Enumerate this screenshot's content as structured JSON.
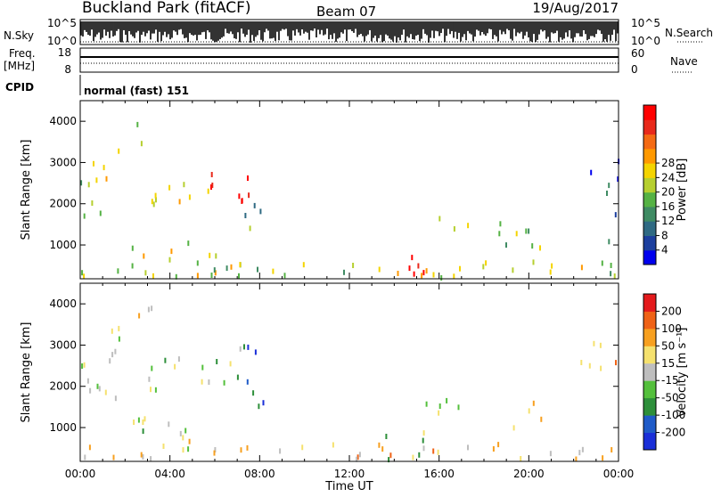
{
  "header": {
    "title": "Buckland Park (fitACF)",
    "beam": "Beam 07",
    "date": "19/Aug/2017"
  },
  "top_panels": {
    "nsky_label": "N.Sky",
    "nsky_ticks": [
      "10^5",
      "10^0"
    ],
    "nsearch_label": "N.Search",
    "nsearch_ticks": [
      "10^5",
      "10^0"
    ],
    "freq_label": "Freq.",
    "freq_unit": "[MHz]",
    "freq_ticks": [
      "18",
      "8"
    ],
    "nave_label": "Nave",
    "nave_ticks": [
      "60",
      "0"
    ],
    "cpid_label": "CPID",
    "cpid_text": "normal (fast) 151"
  },
  "chart_data": [
    {
      "type": "heatmap",
      "panel": "power",
      "ylabel": "Slant Range [km]",
      "yticks": [
        "4000",
        "3000",
        "2000",
        "1000"
      ],
      "ylim": [
        180,
        4500
      ],
      "xlim_hours": [
        0,
        24
      ],
      "colorbar_label": "Power [dB]",
      "colorbar_ticks": [
        "28",
        "24",
        "20",
        "16",
        "12",
        "8",
        "4"
      ],
      "colorbar_colors": [
        "#0000ee",
        "#1c3f9e",
        "#2f6a83",
        "#3f8b63",
        "#55b244",
        "#b6cf2f",
        "#f4d400",
        "#ff9900",
        "#f46a14",
        "#e8291b",
        "#ff0000"
      ],
      "regions": [
        {
          "t0": 0.0,
          "t1": 1.6,
          "r0": 1700,
          "r1": 3000,
          "level": 0.45
        },
        {
          "t0": 1.0,
          "t1": 1.8,
          "r0": 2600,
          "r1": 3500,
          "level": 0.55
        },
        {
          "t0": 2.4,
          "t1": 3.2,
          "r0": 3100,
          "r1": 4300,
          "level": 0.3
        },
        {
          "t0": 3.0,
          "t1": 6.0,
          "r0": 1900,
          "r1": 2500,
          "level": 0.6
        },
        {
          "t0": 5.8,
          "t1": 7.6,
          "r0": 2000,
          "r1": 2900,
          "level": 0.9
        },
        {
          "t0": 7.2,
          "t1": 8.6,
          "r0": 1400,
          "r1": 2100,
          "level": 0.3
        },
        {
          "t0": 2.0,
          "t1": 5.2,
          "r0": 550,
          "r1": 1300,
          "level": 0.55
        },
        {
          "t0": 4.6,
          "t1": 6.2,
          "r0": 400,
          "r1": 900,
          "level": 0.4
        },
        {
          "t0": 0.0,
          "t1": 24.0,
          "r0": 200,
          "r1": 600,
          "level": 0.5
        },
        {
          "t0": 13.6,
          "t1": 15.4,
          "r0": 200,
          "r1": 900,
          "level": 0.85
        },
        {
          "t0": 15.4,
          "t1": 17.4,
          "r0": 1250,
          "r1": 1800,
          "level": 0.5
        },
        {
          "t0": 18.6,
          "t1": 20.6,
          "r0": 900,
          "r1": 1700,
          "level": 0.45
        },
        {
          "t0": 22.3,
          "t1": 24.0,
          "r0": 2200,
          "r1": 3100,
          "level": 0.15
        },
        {
          "t0": 23.4,
          "t1": 24.0,
          "r0": 1000,
          "r1": 1800,
          "level": 0.2
        }
      ]
    },
    {
      "type": "heatmap",
      "panel": "velocity",
      "ylabel": "Slant Range [km]",
      "yticks": [
        "4000",
        "3000",
        "2000",
        "1000"
      ],
      "ylim": [
        180,
        4500
      ],
      "xlim_hours": [
        0,
        24
      ],
      "xticks": [
        "00:00",
        "04:00",
        "08:00",
        "12:00",
        "16:00",
        "20:00",
        "00:00"
      ],
      "xlabel": "Time UT",
      "colorbar_label": "Velocity [m s⁻¹]",
      "colorbar_ticks": [
        "200",
        "100",
        "50",
        "15",
        "-15",
        "-50",
        "-100",
        "-200"
      ],
      "colorbar_colors": [
        "#1a2fd8",
        "#1f5bc8",
        "#2d8f3a",
        "#54c03c",
        "#bebebe",
        "#f5e16e",
        "#f7a020",
        "#ef6216",
        "#e41a1c"
      ],
      "regions": [
        {
          "t0": 0.0,
          "t1": 1.6,
          "r0": 1700,
          "r1": 3000,
          "level": 0.5
        },
        {
          "t0": 1.0,
          "t1": 1.8,
          "r0": 2600,
          "r1": 3500,
          "level": 0.55
        },
        {
          "t0": 2.4,
          "t1": 3.2,
          "r0": 3100,
          "r1": 4300,
          "level": 0.6
        },
        {
          "t0": 3.0,
          "t1": 6.2,
          "r0": 1900,
          "r1": 2700,
          "level": 0.45
        },
        {
          "t0": 5.8,
          "t1": 7.4,
          "r0": 2000,
          "r1": 3000,
          "level": 0.45
        },
        {
          "t0": 7.3,
          "t1": 7.9,
          "r0": 2100,
          "r1": 3000,
          "level": 0.05
        },
        {
          "t0": 7.6,
          "t1": 8.3,
          "r0": 1500,
          "r1": 2200,
          "level": 0.1
        },
        {
          "t0": 2.0,
          "t1": 5.2,
          "r0": 550,
          "r1": 1300,
          "level": 0.5
        },
        {
          "t0": 4.6,
          "t1": 6.2,
          "r0": 400,
          "r1": 900,
          "level": 0.55
        },
        {
          "t0": 0.0,
          "t1": 24.0,
          "r0": 200,
          "r1": 600,
          "level": 0.65
        },
        {
          "t0": 13.6,
          "t1": 15.4,
          "r0": 200,
          "r1": 900,
          "level": 0.4
        },
        {
          "t0": 15.4,
          "t1": 17.4,
          "r0": 1250,
          "r1": 1800,
          "level": 0.5
        },
        {
          "t0": 18.6,
          "t1": 20.6,
          "r0": 900,
          "r1": 1700,
          "level": 0.6
        },
        {
          "t0": 22.3,
          "t1": 24.0,
          "r0": 2200,
          "r1": 3100,
          "level": 0.7
        }
      ]
    }
  ]
}
